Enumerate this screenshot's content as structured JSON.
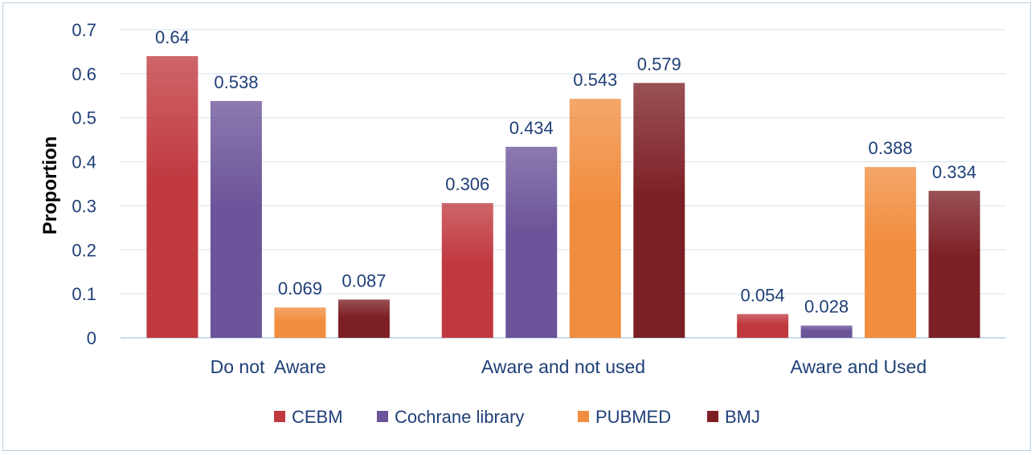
{
  "chart_data": {
    "type": "bar",
    "title": "",
    "xlabel": "",
    "ylabel": "Proportion",
    "ylim": [
      0,
      0.7
    ],
    "yticks": [
      "0",
      "0.1",
      "0.2",
      "0.3",
      "0.4",
      "0.5",
      "0.6",
      "0.7"
    ],
    "grid": true,
    "legend_position": "bottom",
    "categories": [
      "Do not  Aware",
      "Aware and not used",
      "Aware and Used"
    ],
    "series": [
      {
        "name": "CEBM",
        "color": "#c0393f",
        "values": [
          0.64,
          0.306,
          0.054
        ],
        "labels": [
          "0.64",
          "0.306",
          "0.054"
        ]
      },
      {
        "name": "Cochrane library",
        "color": "#6b5499",
        "values": [
          0.538,
          0.434,
          0.028
        ],
        "labels": [
          "0.538",
          "0.434",
          "0.028"
        ]
      },
      {
        "name": "PUBMED",
        "color": "#f18d3f",
        "values": [
          0.069,
          0.543,
          0.388
        ],
        "labels": [
          "0.069",
          "0.543",
          "0.388"
        ]
      },
      {
        "name": "BMJ",
        "color": "#7d2025",
        "values": [
          0.087,
          0.579,
          0.334
        ],
        "labels": [
          "0.087",
          "0.579",
          "0.334"
        ]
      }
    ]
  }
}
